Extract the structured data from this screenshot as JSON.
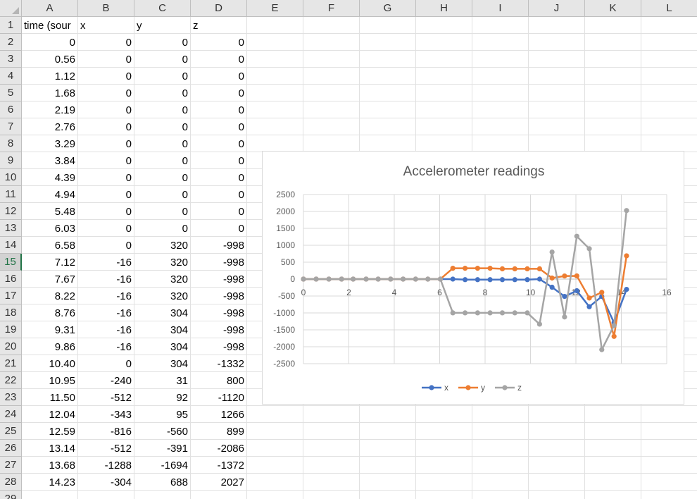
{
  "columns": [
    "A",
    "B",
    "C",
    "D",
    "E",
    "F",
    "G",
    "H",
    "I",
    "J",
    "K",
    "L"
  ],
  "row_numbers": [
    "1",
    "2",
    "3",
    "4",
    "5",
    "6",
    "7",
    "8",
    "9",
    "10",
    "11",
    "12",
    "13",
    "14",
    "15",
    "16",
    "17",
    "18",
    "19",
    "20",
    "21",
    "22",
    "23",
    "24",
    "25",
    "26",
    "27",
    "28",
    "29"
  ],
  "active_row": "15",
  "header_row": [
    "time (source)",
    "x",
    "y",
    "z"
  ],
  "header_display": [
    "time (sour",
    "x",
    "y",
    "z"
  ],
  "rows": [
    [
      "0",
      "0",
      "0",
      "0"
    ],
    [
      "0.56",
      "0",
      "0",
      "0"
    ],
    [
      "1.12",
      "0",
      "0",
      "0"
    ],
    [
      "1.68",
      "0",
      "0",
      "0"
    ],
    [
      "2.19",
      "0",
      "0",
      "0"
    ],
    [
      "2.76",
      "0",
      "0",
      "0"
    ],
    [
      "3.29",
      "0",
      "0",
      "0"
    ],
    [
      "3.84",
      "0",
      "0",
      "0"
    ],
    [
      "4.39",
      "0",
      "0",
      "0"
    ],
    [
      "4.94",
      "0",
      "0",
      "0"
    ],
    [
      "5.48",
      "0",
      "0",
      "0"
    ],
    [
      "6.03",
      "0",
      "0",
      "0"
    ],
    [
      "6.58",
      "0",
      "320",
      "-998"
    ],
    [
      "7.12",
      "-16",
      "320",
      "-998"
    ],
    [
      "7.67",
      "-16",
      "320",
      "-998"
    ],
    [
      "8.22",
      "-16",
      "320",
      "-998"
    ],
    [
      "8.76",
      "-16",
      "304",
      "-998"
    ],
    [
      "9.31",
      "-16",
      "304",
      "-998"
    ],
    [
      "9.86",
      "-16",
      "304",
      "-998"
    ],
    [
      "10.40",
      "0",
      "304",
      "-1332"
    ],
    [
      "10.95",
      "-240",
      "31",
      "800"
    ],
    [
      "11.50",
      "-512",
      "92",
      "-1120"
    ],
    [
      "12.04",
      "-343",
      "95",
      "1266"
    ],
    [
      "12.59",
      "-816",
      "-560",
      "899"
    ],
    [
      "13.14",
      "-512",
      "-391",
      "-2086"
    ],
    [
      "13.68",
      "-1288",
      "-1694",
      "-1372"
    ],
    [
      "14.23",
      "-304",
      "688",
      "2027"
    ]
  ],
  "chart_data": {
    "type": "scatter",
    "title": "Accelerometer readings",
    "xlabel": "",
    "ylabel": "",
    "xlim": [
      0,
      16
    ],
    "ylim": [
      -2500,
      2500
    ],
    "xticks": [
      0,
      2,
      4,
      6,
      8,
      10,
      12,
      14,
      16
    ],
    "yticks": [
      2500,
      2000,
      1500,
      1000,
      500,
      0,
      -500,
      -1000,
      -1500,
      -2000,
      -2500
    ],
    "grid": true,
    "legend_position": "bottom",
    "x": [
      0,
      0.56,
      1.12,
      1.68,
      2.19,
      2.76,
      3.29,
      3.84,
      4.39,
      4.94,
      5.48,
      6.03,
      6.58,
      7.12,
      7.67,
      8.22,
      8.76,
      9.31,
      9.86,
      10.4,
      10.95,
      11.5,
      12.04,
      12.59,
      13.14,
      13.68,
      14.23
    ],
    "series": [
      {
        "name": "x",
        "color": "#4472c4",
        "values": [
          0,
          0,
          0,
          0,
          0,
          0,
          0,
          0,
          0,
          0,
          0,
          0,
          0,
          -16,
          -16,
          -16,
          -16,
          -16,
          -16,
          0,
          -240,
          -512,
          -343,
          -816,
          -512,
          -1288,
          -304
        ]
      },
      {
        "name": "y",
        "color": "#ed7d31",
        "values": [
          0,
          0,
          0,
          0,
          0,
          0,
          0,
          0,
          0,
          0,
          0,
          0,
          320,
          320,
          320,
          320,
          304,
          304,
          304,
          304,
          31,
          92,
          95,
          -560,
          -391,
          -1694,
          688
        ]
      },
      {
        "name": "z",
        "color": "#a5a5a5",
        "values": [
          0,
          0,
          0,
          0,
          0,
          0,
          0,
          0,
          0,
          0,
          0,
          0,
          -998,
          -998,
          -998,
          -998,
          -998,
          -998,
          -998,
          -1332,
          800,
          -1120,
          1266,
          899,
          -2086,
          -1372,
          2027
        ]
      }
    ]
  }
}
